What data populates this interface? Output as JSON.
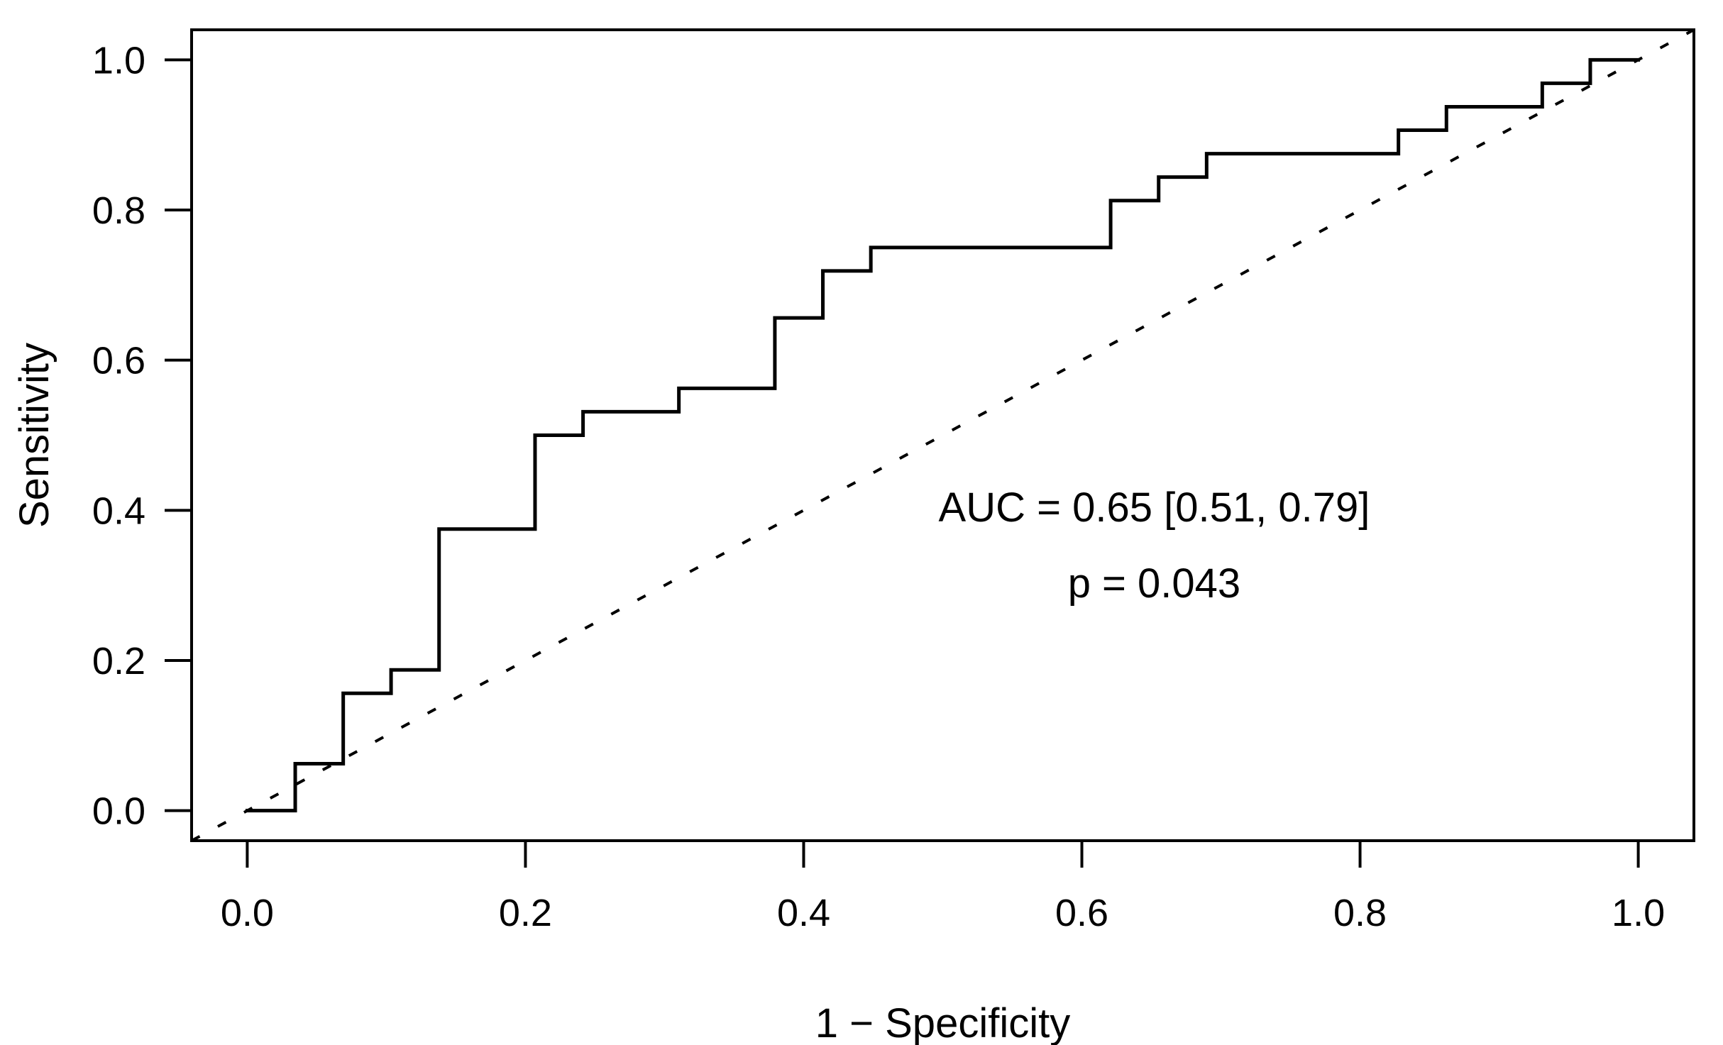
{
  "figure": {
    "description": "ROC curve plot, R base-graphics style",
    "background_color": "#ffffff",
    "line_color": "#000000",
    "text_color": "#000000"
  },
  "chart_data": {
    "type": "line",
    "subtype": "roc_step_curve",
    "title": "",
    "xlabel": "1 − Specificity",
    "ylabel": "Sensitivity",
    "xlim": [
      -0.04,
      1.04
    ],
    "ylim": [
      -0.04,
      1.04
    ],
    "grid": false,
    "legend": null,
    "x_ticks": [
      0.0,
      0.2,
      0.4,
      0.6,
      0.8,
      1.0
    ],
    "x_tick_labels": [
      "0.0",
      "0.2",
      "0.4",
      "0.6",
      "0.8",
      "1.0"
    ],
    "y_ticks": [
      0.0,
      0.2,
      0.4,
      0.6,
      0.8,
      1.0
    ],
    "y_tick_labels": [
      "0.0",
      "0.2",
      "0.4",
      "0.6",
      "0.8",
      "1.0"
    ],
    "series": [
      {
        "name": "roc_curve",
        "style": "solid_step",
        "points": [
          [
            0.0,
            0.0
          ],
          [
            0.0345,
            0.0625
          ],
          [
            0.069,
            0.1563
          ],
          [
            0.1034,
            0.1875
          ],
          [
            0.1379,
            0.375
          ],
          [
            0.2069,
            0.5
          ],
          [
            0.2414,
            0.5313
          ],
          [
            0.3103,
            0.5625
          ],
          [
            0.3793,
            0.6563
          ],
          [
            0.4138,
            0.7188
          ],
          [
            0.4483,
            0.75
          ],
          [
            0.6207,
            0.8125
          ],
          [
            0.6552,
            0.8438
          ],
          [
            0.6897,
            0.875
          ],
          [
            0.8276,
            0.9063
          ],
          [
            0.8621,
            0.9375
          ],
          [
            0.931,
            0.9688
          ],
          [
            0.9655,
            1.0
          ],
          [
            1.0,
            1.0
          ]
        ]
      },
      {
        "name": "chance_diagonal",
        "style": "dashed_line",
        "points": [
          [
            0,
            0
          ],
          [
            1,
            1
          ]
        ]
      }
    ],
    "annotations": [
      {
        "text": "AUC = 0.65 [0.51, 0.79]",
        "x": 0.652,
        "y": 0.404
      },
      {
        "text": "p = 0.043",
        "x": 0.652,
        "y": 0.303
      }
    ],
    "stats": {
      "auc": 0.65,
      "auc_ci_lower": 0.51,
      "auc_ci_upper": 0.79,
      "p_value": 0.043
    }
  }
}
